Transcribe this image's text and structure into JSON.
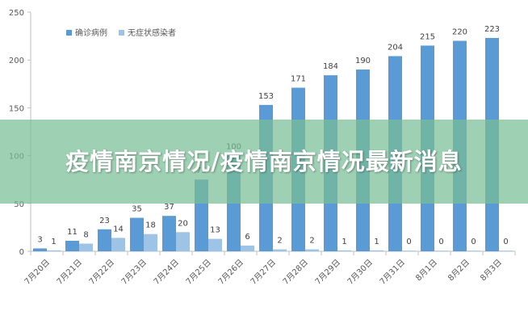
{
  "chart_data": {
    "type": "bar",
    "categories": [
      "7月20日",
      "7月21日",
      "7月22日",
      "7月23日",
      "7月24日",
      "7月25日",
      "7月26日",
      "7月27日",
      "7月28日",
      "7月29日",
      "7月30日",
      "7月31日",
      "8月1日",
      "8月2日",
      "8月3日"
    ],
    "series": [
      {
        "name": "确诊病例",
        "color": "#5b9bd5",
        "values": [
          3,
          11,
          23,
          35,
          37,
          75,
          100,
          153,
          171,
          184,
          190,
          204,
          215,
          220,
          223
        ]
      },
      {
        "name": "无症状感染者",
        "color": "#9dc3e6",
        "values": [
          1,
          8,
          14,
          18,
          20,
          13,
          6,
          2,
          2,
          1,
          1,
          0,
          0,
          0,
          0
        ]
      }
    ],
    "ylim": [
      0,
      250
    ],
    "yticks": [
      0,
      50,
      100,
      150,
      200,
      250
    ],
    "grid": false,
    "legend": "top-left"
  },
  "overlay": {
    "title": "疫情南京情况/疫情南京情况最新消息"
  }
}
